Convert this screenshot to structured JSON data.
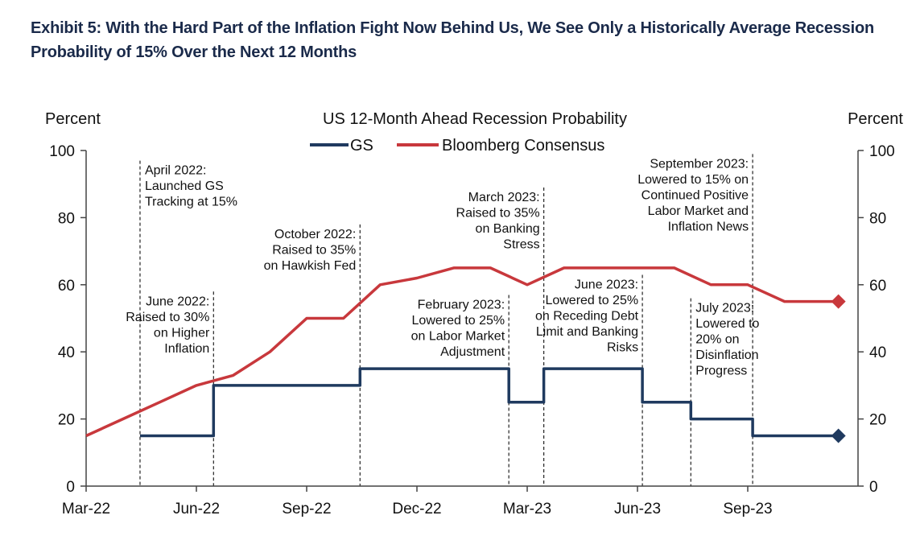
{
  "exhibit_title": "Exhibit 5: With the Hard Part of the Inflation Fight Now Behind Us, We See Only a Historically Average Recession Probability of 15% Over the Next 12 Months",
  "chart_data": {
    "type": "line",
    "title": "US 12-Month Ahead Recession Probability",
    "ylabel_left": "Percent",
    "ylabel_right": "Percent",
    "ylim": [
      0,
      100
    ],
    "yticks": [
      0,
      20,
      40,
      60,
      80,
      100
    ],
    "xlim": [
      "2022-03",
      "2023-12"
    ],
    "xticks": [
      {
        "date": "2022-03",
        "label": "Mar-22"
      },
      {
        "date": "2022-06",
        "label": "Jun-22"
      },
      {
        "date": "2022-09",
        "label": "Sep-22"
      },
      {
        "date": "2022-12",
        "label": "Dec-22"
      },
      {
        "date": "2023-03",
        "label": "Mar-23"
      },
      {
        "date": "2023-06",
        "label": "Jun-23"
      },
      {
        "date": "2023-09",
        "label": "Sep-23"
      }
    ],
    "legend_position": "top-center",
    "series": [
      {
        "name": "GS",
        "color": "#1f3a5f",
        "step": true,
        "end_marker": "diamond",
        "points": [
          {
            "date": "2022-04-15",
            "value": 15
          },
          {
            "date": "2022-06-15",
            "value": 15
          },
          {
            "date": "2022-06-15",
            "value": 30
          },
          {
            "date": "2022-10-15",
            "value": 30
          },
          {
            "date": "2022-10-15",
            "value": 35
          },
          {
            "date": "2023-02-15",
            "value": 35
          },
          {
            "date": "2023-02-15",
            "value": 25
          },
          {
            "date": "2023-03-15",
            "value": 25
          },
          {
            "date": "2023-03-15",
            "value": 35
          },
          {
            "date": "2023-06-05",
            "value": 35
          },
          {
            "date": "2023-06-05",
            "value": 25
          },
          {
            "date": "2023-07-15",
            "value": 25
          },
          {
            "date": "2023-07-15",
            "value": 20
          },
          {
            "date": "2023-09-05",
            "value": 20
          },
          {
            "date": "2023-09-05",
            "value": 15
          },
          {
            "date": "2023-11-15",
            "value": 15
          }
        ]
      },
      {
        "name": "Bloomberg Consensus",
        "color": "#c8383c",
        "step": false,
        "end_marker": "diamond",
        "points": [
          {
            "date": "2022-03-01",
            "value": 15
          },
          {
            "date": "2022-04-01",
            "value": 20
          },
          {
            "date": "2022-05-01",
            "value": 25
          },
          {
            "date": "2022-06-01",
            "value": 30
          },
          {
            "date": "2022-07-01",
            "value": 33
          },
          {
            "date": "2022-08-01",
            "value": 40
          },
          {
            "date": "2022-09-01",
            "value": 50
          },
          {
            "date": "2022-10-01",
            "value": 50
          },
          {
            "date": "2022-11-01",
            "value": 60
          },
          {
            "date": "2022-12-01",
            "value": 62
          },
          {
            "date": "2023-01-01",
            "value": 65
          },
          {
            "date": "2023-02-01",
            "value": 65
          },
          {
            "date": "2023-03-01",
            "value": 60
          },
          {
            "date": "2023-04-01",
            "value": 65
          },
          {
            "date": "2023-05-01",
            "value": 65
          },
          {
            "date": "2023-06-01",
            "value": 65
          },
          {
            "date": "2023-07-01",
            "value": 65
          },
          {
            "date": "2023-08-01",
            "value": 60
          },
          {
            "date": "2023-09-01",
            "value": 60
          },
          {
            "date": "2023-10-01",
            "value": 55
          },
          {
            "date": "2023-11-15",
            "value": 55
          }
        ]
      }
    ],
    "annotations": [
      {
        "id": "apr-2022",
        "date": "2022-04-15",
        "align": "start",
        "label_top": 96,
        "lines": [
          "April 2022:",
          "Launched GS",
          "Tracking at 15%"
        ]
      },
      {
        "id": "jun-2022",
        "date": "2022-06-15",
        "align": "end",
        "label_top": 57,
        "lines": [
          "June 2022:",
          "Raised to 30%",
          "on Higher",
          "Inflation"
        ]
      },
      {
        "id": "oct-2022",
        "date": "2022-10-15",
        "align": "end",
        "label_top": 77,
        "lines": [
          "October 2022:",
          "Raised to 35%",
          "on Hawkish Fed"
        ]
      },
      {
        "id": "feb-2023",
        "date": "2023-02-15",
        "align": "end",
        "label_top": 56,
        "lines": [
          "February 2023:",
          "Lowered to 25%",
          "on Labor Market",
          "Adjustment"
        ]
      },
      {
        "id": "mar-2023",
        "date": "2023-03-15",
        "align": "end",
        "label_top": 88,
        "lines": [
          "March 2023:",
          "Raised to 35%",
          "on Banking",
          "Stress"
        ]
      },
      {
        "id": "jun-2023",
        "date": "2023-06-05",
        "align": "end",
        "label_top": 62,
        "lines": [
          "June 2023:",
          "Lowered to 25%",
          "on Receding Debt",
          "Limit and Banking",
          "Risks"
        ]
      },
      {
        "id": "jul-2023",
        "date": "2023-07-15",
        "align": "start",
        "label_top": 55,
        "lines": [
          "July 2023:",
          "Lowered to",
          "20% on",
          "Disinflation",
          "Progress"
        ]
      },
      {
        "id": "sep-2023",
        "date": "2023-09-05",
        "align": "end",
        "label_top": 98,
        "lines": [
          "September 2023:",
          "Lowered to 15% on",
          "Continued Positive",
          "Labor Market and",
          "Inflation News"
        ]
      }
    ]
  }
}
